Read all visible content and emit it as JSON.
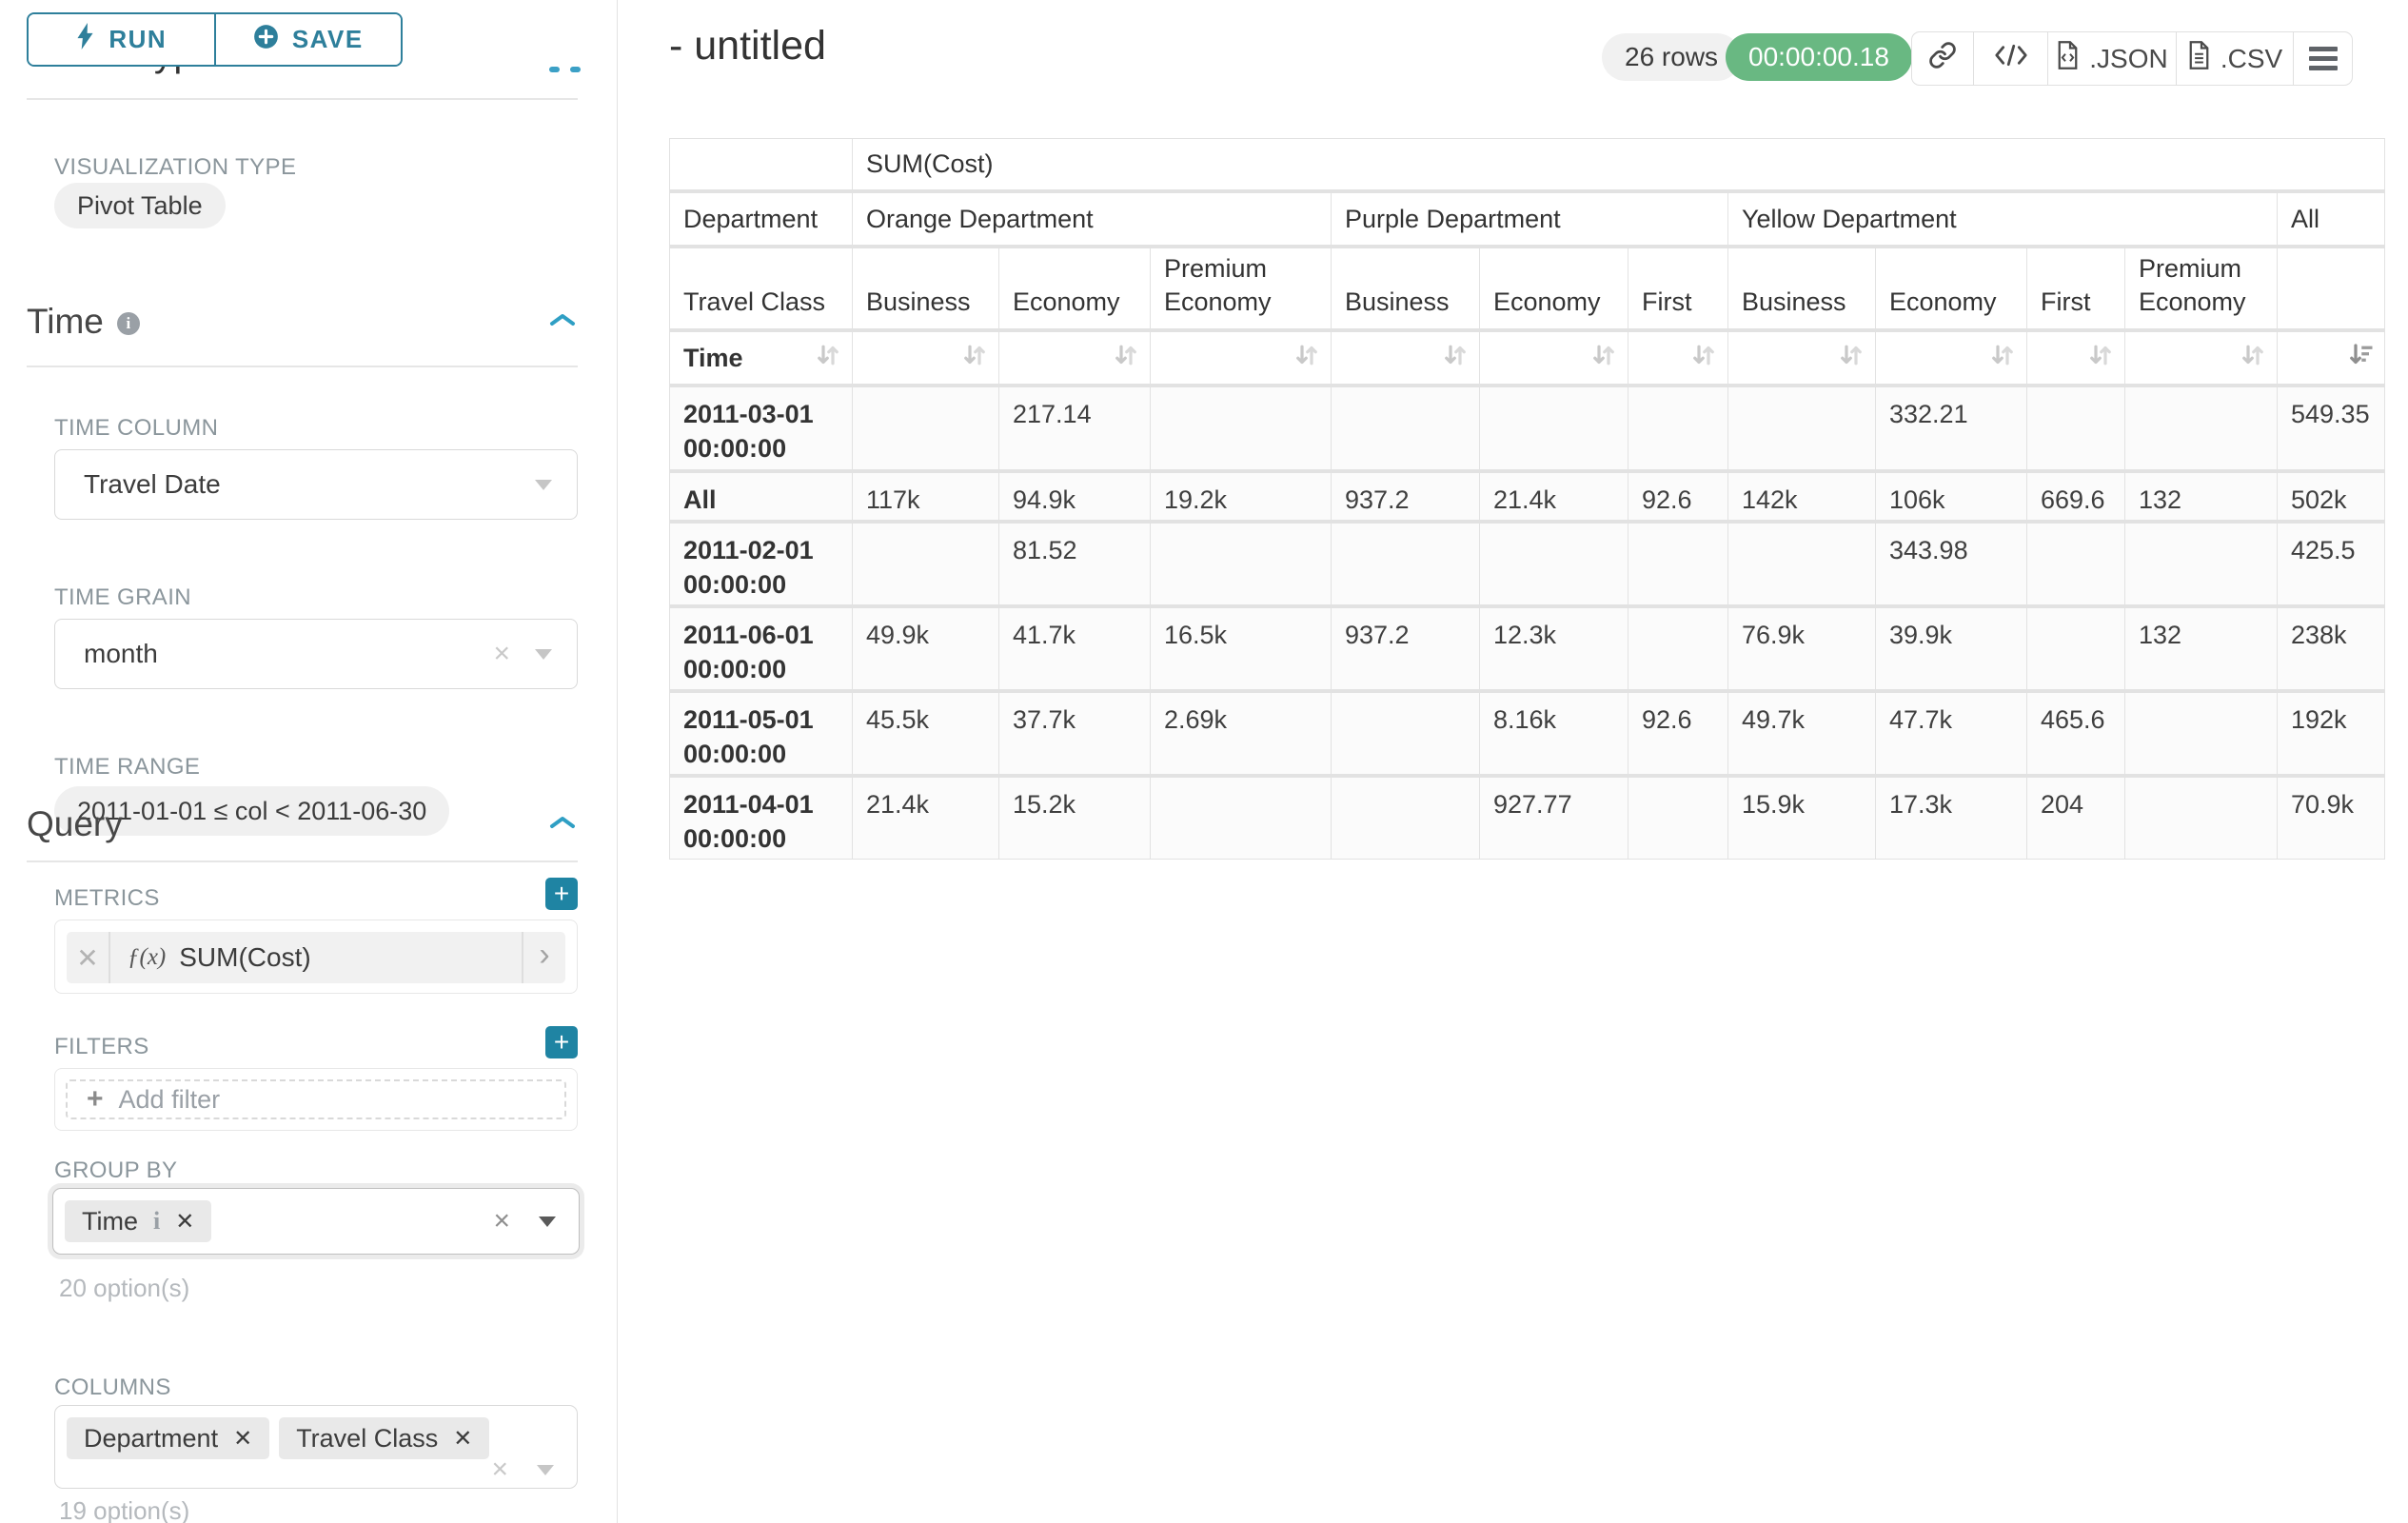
{
  "colors": {
    "accent_teal": "#2e7f9b",
    "plus_button_teal": "#1f84a3",
    "chevron_blue": "#2f9fc4",
    "success_green": "#69b882"
  },
  "left_panel": {
    "run_label": "RUN",
    "save_label": "SAVE",
    "chart_type_heading": "Chart Type",
    "viz_type": {
      "label": "VISUALIZATION TYPE",
      "value": "Pivot Table"
    },
    "time": {
      "heading": "Time",
      "column_label": "TIME COLUMN",
      "column_value": "Travel Date",
      "grain_label": "TIME GRAIN",
      "grain_value": "month",
      "range_label": "TIME RANGE",
      "range_value": "2011-01-01 ≤ col < 2011-06-30"
    },
    "query": {
      "heading": "Query",
      "metrics_label": "METRICS",
      "metric_fx": "ƒ(x)",
      "metric_name": "SUM(Cost)",
      "filters_label": "FILTERS",
      "add_filter_label": "Add filter",
      "group_by_label": "GROUP BY",
      "group_by_chip": "Time",
      "group_by_hint": "20 option(s)",
      "columns_label": "COLUMNS",
      "column_chips": [
        "Department",
        "Travel Class"
      ],
      "columns_hint": "19 option(s)"
    }
  },
  "main": {
    "title": "- untitled",
    "rows_badge": "26 rows",
    "timer_badge": "00:00:00.18",
    "json_label": ".JSON",
    "csv_label": ".CSV"
  },
  "chart_data": {
    "type": "table",
    "title": "SUM(Cost)",
    "column_dimension": "Department",
    "sub_column_dimension": "Travel Class",
    "row_dimension": "Time",
    "column_groups": [
      {
        "label": "Orange Department",
        "columns": [
          "Business",
          "Economy",
          "Premium Economy"
        ]
      },
      {
        "label": "Purple Department",
        "columns": [
          "Business",
          "Economy",
          "First"
        ]
      },
      {
        "label": "Yellow Department",
        "columns": [
          "Business",
          "Economy",
          "First",
          "Premium Economy"
        ]
      },
      {
        "label": "All",
        "columns": [
          ""
        ]
      }
    ],
    "rows": [
      {
        "label": "2011-03-01 00:00:00",
        "values": [
          "",
          "217.14",
          "",
          "",
          "",
          "",
          "",
          "332.21",
          "",
          "",
          "549.35"
        ]
      },
      {
        "label": "All",
        "values": [
          "117k",
          "94.9k",
          "19.2k",
          "937.2",
          "21.4k",
          "92.6",
          "142k",
          "106k",
          "669.6",
          "132",
          "502k"
        ]
      },
      {
        "label": "2011-02-01 00:00:00",
        "values": [
          "",
          "81.52",
          "",
          "",
          "",
          "",
          "",
          "343.98",
          "",
          "",
          "425.5"
        ]
      },
      {
        "label": "2011-06-01 00:00:00",
        "values": [
          "49.9k",
          "41.7k",
          "16.5k",
          "937.2",
          "12.3k",
          "",
          "76.9k",
          "39.9k",
          "",
          "132",
          "238k"
        ]
      },
      {
        "label": "2011-05-01 00:00:00",
        "values": [
          "45.5k",
          "37.7k",
          "2.69k",
          "",
          "8.16k",
          "92.6",
          "49.7k",
          "47.7k",
          "465.6",
          "",
          "192k"
        ]
      },
      {
        "label": "2011-04-01 00:00:00",
        "values": [
          "21.4k",
          "15.2k",
          "",
          "",
          "927.77",
          "",
          "15.9k",
          "17.3k",
          "204",
          "",
          "70.9k"
        ]
      }
    ]
  }
}
